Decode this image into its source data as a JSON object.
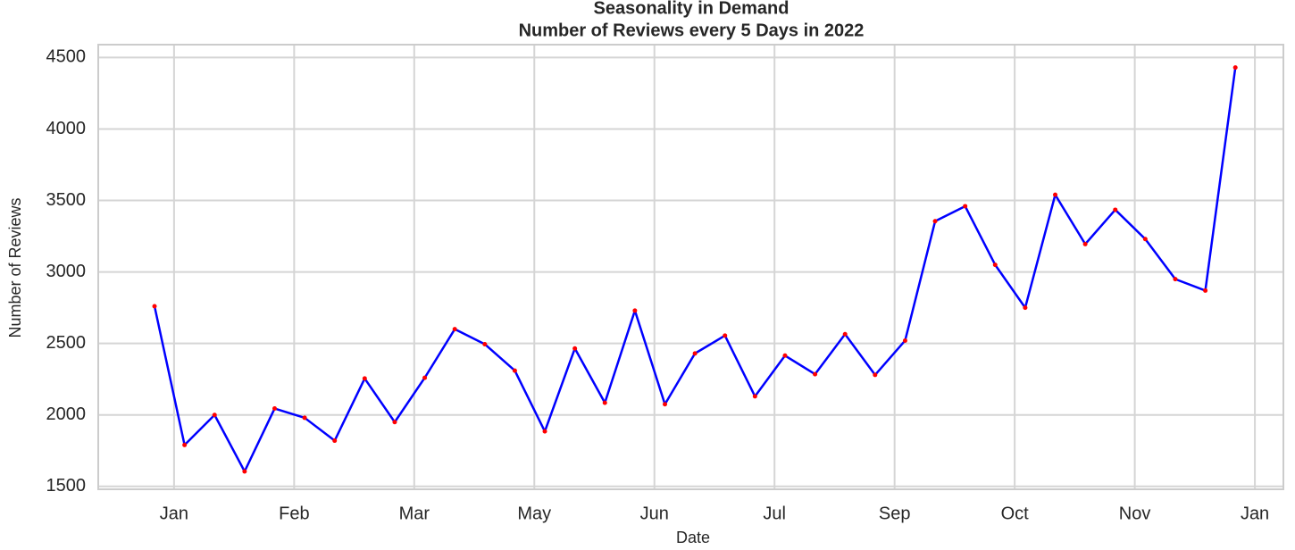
{
  "chart_data": {
    "type": "line",
    "title": "Seasonality in Demand",
    "subtitle": "Number of Reviews every 5 Days in 2022",
    "x_label": "Date",
    "y_label": "Number of Reviews",
    "x": [
      0,
      1,
      2,
      3,
      4,
      5,
      6,
      7,
      8,
      9,
      10,
      11,
      12,
      13,
      14,
      15,
      16,
      17,
      18,
      19,
      20,
      21,
      22,
      23,
      24,
      25,
      26,
      27,
      28,
      29,
      30,
      31,
      32,
      33,
      34,
      35,
      36
    ],
    "values": [
      2760,
      1790,
      2000,
      1605,
      2045,
      1980,
      1820,
      2255,
      1950,
      2260,
      2600,
      2495,
      2310,
      1885,
      2465,
      2085,
      2730,
      2075,
      2430,
      2555,
      2130,
      2415,
      2285,
      2565,
      2280,
      2520,
      3355,
      3460,
      3050,
      2750,
      3540,
      3195,
      3435,
      3230,
      2950,
      2870,
      4430
    ],
    "color": "#0000ff",
    "marker_color": "#ff0000",
    "xlim": [
      -1.875,
      37.6
    ],
    "xticks": [
      {
        "value": 0.65,
        "label": "Jan"
      },
      {
        "value": 4.65,
        "label": "Feb"
      },
      {
        "value": 8.65,
        "label": "Mar"
      },
      {
        "value": 12.65,
        "label": "May"
      },
      {
        "value": 16.65,
        "label": "Jun"
      },
      {
        "value": 20.65,
        "label": "Jul"
      },
      {
        "value": 24.65,
        "label": "Sep"
      },
      {
        "value": 28.65,
        "label": "Oct"
      },
      {
        "value": 32.65,
        "label": "Nov"
      },
      {
        "value": 36.65,
        "label": "Jan"
      }
    ],
    "ylim": [
      1480,
      4590
    ],
    "yticks": [
      1500,
      2000,
      2500,
      3000,
      3500,
      4000,
      4500
    ],
    "grid": true
  }
}
